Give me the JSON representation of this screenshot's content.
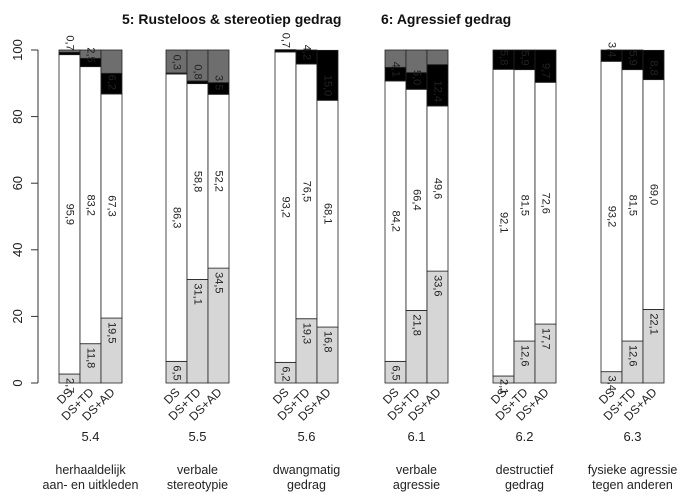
{
  "chart_data": {
    "type": "bar",
    "stacked": true,
    "ylim": [
      0,
      100
    ],
    "yticks": [
      0,
      20,
      40,
      60,
      80,
      100
    ],
    "section_titles": [
      "5: Rusteloos & stereotiep gedrag",
      "6: Agressief gedrag"
    ],
    "group_size_labels": [
      "DS",
      "DS+TD",
      "DS+AD"
    ],
    "groups": [
      {
        "code": "5.4",
        "description": [
          "herhaaldelijk",
          "aan- en uitkleden"
        ],
        "bars": [
          {
            "category": "DS",
            "values": [
              2.7,
              95.9,
              0.7,
              0.7
            ]
          },
          {
            "category": "DS+TD",
            "values": [
              11.8,
              83.2,
              2.5,
              2.5
            ]
          },
          {
            "category": "DS+AD",
            "values": [
              19.5,
              67.3,
              6.2,
              7.0
            ]
          }
        ]
      },
      {
        "code": "5.5",
        "description": [
          "verbale",
          "stereotypie"
        ],
        "bars": [
          {
            "category": "DS",
            "values": [
              6.5,
              86.3,
              0.3,
              6.9
            ]
          },
          {
            "category": "DS+TD",
            "values": [
              31.1,
              58.8,
              0.8,
              9.3
            ]
          },
          {
            "category": "DS+AD",
            "values": [
              34.5,
              52.2,
              3.5,
              9.8
            ]
          }
        ]
      },
      {
        "code": "5.6",
        "description": [
          "dwangmatig",
          "gedrag"
        ],
        "bars": [
          {
            "category": "DS",
            "values": [
              6.2,
              93.2,
              0.7,
              0
            ]
          },
          {
            "category": "DS+TD",
            "values": [
              19.3,
              76.5,
              4.2,
              0
            ]
          },
          {
            "category": "DS+AD",
            "values": [
              16.8,
              68.1,
              15.0,
              0
            ]
          }
        ]
      },
      {
        "code": "6.1",
        "description": [
          "verbale",
          "agressie"
        ],
        "bars": [
          {
            "category": "DS",
            "values": [
              6.5,
              84.2,
              4.1,
              5.2
            ]
          },
          {
            "category": "DS+TD",
            "values": [
              21.8,
              66.4,
              5.0,
              6.8
            ]
          },
          {
            "category": "DS+AD",
            "values": [
              33.6,
              49.6,
              12.4,
              4.4
            ]
          }
        ]
      },
      {
        "code": "6.2",
        "description": [
          "destructief",
          "gedrag"
        ],
        "bars": [
          {
            "category": "DS",
            "values": [
              2.1,
              92.1,
              5.8,
              0
            ]
          },
          {
            "category": "DS+TD",
            "values": [
              12.6,
              81.5,
              5.9,
              0
            ]
          },
          {
            "category": "DS+AD",
            "values": [
              17.7,
              72.6,
              9.7,
              0
            ]
          }
        ]
      },
      {
        "code": "6.3",
        "description": [
          "fysieke agressie",
          "tegen anderen"
        ],
        "bars": [
          {
            "category": "DS",
            "values": [
              3.4,
              93.2,
              3.4,
              0
            ]
          },
          {
            "category": "DS+TD",
            "values": [
              12.6,
              81.5,
              5.9,
              0
            ]
          },
          {
            "category": "DS+AD",
            "values": [
              22.1,
              69.0,
              8.8,
              0
            ]
          }
        ]
      }
    ],
    "segment_colors": [
      "#d6d6d6",
      "#ffffff",
      "#000000",
      "#6e6e6e"
    ]
  }
}
